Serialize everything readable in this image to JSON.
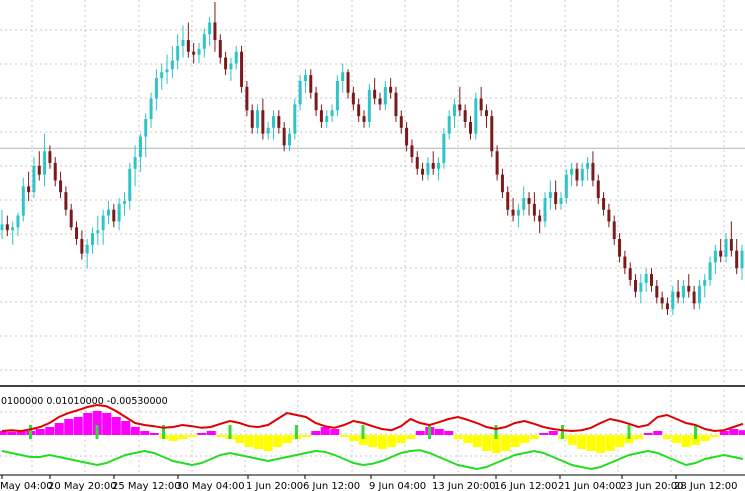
{
  "chart_data": {
    "type": "candlestick",
    "colors": {
      "background": "#ffffff",
      "grid": "#c8c8c8",
      "bull": "#2ec4c9",
      "bear": "#7a1a1a",
      "indicator_upper_line": "#e00000",
      "indicator_lower_line": "#22dd22",
      "hist_magenta": "#ff00ff",
      "hist_yellow": "#ffff00",
      "hist_green": "#33dd33",
      "separator": "#000000",
      "level_line": "#b4b4b4"
    },
    "grid": true,
    "price_panel": {
      "level_line": 0.73,
      "candles": [
        [
          0.45,
          0.52,
          0.42,
          0.47
        ],
        [
          0.47,
          0.5,
          0.43,
          0.45
        ],
        [
          0.45,
          0.48,
          0.4,
          0.46
        ],
        [
          0.46,
          0.51,
          0.43,
          0.5
        ],
        [
          0.5,
          0.63,
          0.48,
          0.6
        ],
        [
          0.6,
          0.65,
          0.55,
          0.58
        ],
        [
          0.58,
          0.7,
          0.56,
          0.67
        ],
        [
          0.67,
          0.72,
          0.62,
          0.64
        ],
        [
          0.64,
          0.78,
          0.6,
          0.72
        ],
        [
          0.72,
          0.74,
          0.66,
          0.68
        ],
        [
          0.68,
          0.7,
          0.6,
          0.62
        ],
        [
          0.62,
          0.65,
          0.56,
          0.58
        ],
        [
          0.58,
          0.6,
          0.5,
          0.52
        ],
        [
          0.52,
          0.54,
          0.45,
          0.46
        ],
        [
          0.46,
          0.48,
          0.4,
          0.42
        ],
        [
          0.42,
          0.45,
          0.35,
          0.37
        ],
        [
          0.37,
          0.42,
          0.32,
          0.4
        ],
        [
          0.4,
          0.46,
          0.37,
          0.44
        ],
        [
          0.44,
          0.5,
          0.4,
          0.45
        ],
        [
          0.45,
          0.52,
          0.4,
          0.5
        ],
        [
          0.5,
          0.55,
          0.47,
          0.52
        ],
        [
          0.52,
          0.54,
          0.46,
          0.48
        ],
        [
          0.48,
          0.56,
          0.45,
          0.54
        ],
        [
          0.54,
          0.58,
          0.5,
          0.55
        ],
        [
          0.55,
          0.68,
          0.52,
          0.66
        ],
        [
          0.66,
          0.74,
          0.6,
          0.7
        ],
        [
          0.7,
          0.78,
          0.65,
          0.77
        ],
        [
          0.77,
          0.85,
          0.7,
          0.83
        ],
        [
          0.83,
          0.92,
          0.8,
          0.9
        ],
        [
          0.9,
          1.0,
          0.86,
          0.97
        ],
        [
          0.97,
          1.02,
          0.93,
          0.99
        ],
        [
          0.99,
          1.05,
          0.95,
          1.0
        ],
        [
          1.0,
          1.08,
          0.97,
          1.03
        ],
        [
          1.03,
          1.12,
          1.0,
          1.08
        ],
        [
          1.08,
          1.15,
          1.04,
          1.1
        ],
        [
          1.1,
          1.16,
          1.04,
          1.06
        ],
        [
          1.06,
          1.09,
          1.02,
          1.05
        ],
        [
          1.05,
          1.09,
          1.02,
          1.07
        ],
        [
          1.07,
          1.14,
          1.04,
          1.12
        ],
        [
          1.12,
          1.18,
          1.08,
          1.16
        ],
        [
          1.16,
          1.23,
          1.06,
          1.1
        ],
        [
          1.1,
          1.12,
          1.02,
          1.04
        ],
        [
          1.04,
          1.06,
          0.98,
          1.0
        ],
        [
          1.0,
          1.04,
          0.96,
          1.02
        ],
        [
          1.02,
          1.08,
          1.0,
          1.06
        ],
        [
          1.06,
          1.08,
          0.92,
          0.94
        ],
        [
          0.94,
          0.96,
          0.84,
          0.86
        ],
        [
          0.86,
          0.88,
          0.78,
          0.8
        ],
        [
          0.8,
          0.88,
          0.78,
          0.86
        ],
        [
          0.86,
          0.9,
          0.76,
          0.78
        ],
        [
          0.78,
          0.82,
          0.76,
          0.8
        ],
        [
          0.8,
          0.86,
          0.76,
          0.84
        ],
        [
          0.84,
          0.86,
          0.78,
          0.8
        ],
        [
          0.8,
          0.82,
          0.72,
          0.74
        ],
        [
          0.74,
          0.8,
          0.72,
          0.78
        ],
        [
          0.78,
          0.9,
          0.76,
          0.88
        ],
        [
          0.88,
          0.98,
          0.86,
          0.96
        ],
        [
          0.96,
          1.0,
          0.92,
          0.98
        ],
        [
          0.98,
          1.0,
          0.9,
          0.92
        ],
        [
          0.92,
          0.94,
          0.84,
          0.86
        ],
        [
          0.86,
          0.88,
          0.8,
          0.82
        ],
        [
          0.82,
          0.86,
          0.8,
          0.84
        ],
        [
          0.84,
          0.88,
          0.82,
          0.86
        ],
        [
          0.86,
          0.98,
          0.84,
          0.96
        ],
        [
          0.96,
          1.02,
          0.92,
          0.99
        ],
        [
          0.99,
          1.0,
          0.9,
          0.92
        ],
        [
          0.92,
          0.94,
          0.86,
          0.88
        ],
        [
          0.88,
          0.9,
          0.82,
          0.84
        ],
        [
          0.84,
          0.86,
          0.8,
          0.82
        ],
        [
          0.82,
          0.95,
          0.8,
          0.93
        ],
        [
          0.93,
          0.97,
          0.88,
          0.9
        ],
        [
          0.9,
          0.92,
          0.86,
          0.88
        ],
        [
          0.88,
          0.96,
          0.86,
          0.94
        ],
        [
          0.94,
          0.97,
          0.9,
          0.92
        ],
        [
          0.92,
          0.94,
          0.82,
          0.84
        ],
        [
          0.84,
          0.86,
          0.78,
          0.8
        ],
        [
          0.8,
          0.82,
          0.72,
          0.74
        ],
        [
          0.74,
          0.76,
          0.68,
          0.7
        ],
        [
          0.7,
          0.72,
          0.64,
          0.66
        ],
        [
          0.66,
          0.68,
          0.62,
          0.64
        ],
        [
          0.64,
          0.7,
          0.62,
          0.68
        ],
        [
          0.68,
          0.72,
          0.64,
          0.66
        ],
        [
          0.66,
          0.7,
          0.62,
          0.68
        ],
        [
          0.68,
          0.8,
          0.66,
          0.78
        ],
        [
          0.78,
          0.86,
          0.76,
          0.84
        ],
        [
          0.84,
          0.9,
          0.8,
          0.88
        ],
        [
          0.88,
          0.94,
          0.84,
          0.86
        ],
        [
          0.86,
          0.88,
          0.8,
          0.82
        ],
        [
          0.82,
          0.84,
          0.76,
          0.78
        ],
        [
          0.78,
          0.92,
          0.76,
          0.9
        ],
        [
          0.9,
          0.94,
          0.84,
          0.86
        ],
        [
          0.86,
          0.88,
          0.8,
          0.84
        ],
        [
          0.84,
          0.86,
          0.7,
          0.72
        ],
        [
          0.72,
          0.74,
          0.62,
          0.64
        ],
        [
          0.64,
          0.66,
          0.56,
          0.58
        ],
        [
          0.58,
          0.6,
          0.5,
          0.52
        ],
        [
          0.52,
          0.56,
          0.48,
          0.5
        ],
        [
          0.5,
          0.54,
          0.46,
          0.52
        ],
        [
          0.52,
          0.6,
          0.5,
          0.56
        ],
        [
          0.56,
          0.58,
          0.5,
          0.54
        ],
        [
          0.54,
          0.58,
          0.48,
          0.5
        ],
        [
          0.5,
          0.52,
          0.44,
          0.48
        ],
        [
          0.48,
          0.58,
          0.46,
          0.56
        ],
        [
          0.56,
          0.62,
          0.52,
          0.58
        ],
        [
          0.58,
          0.62,
          0.52,
          0.54
        ],
        [
          0.54,
          0.58,
          0.52,
          0.56
        ],
        [
          0.56,
          0.66,
          0.54,
          0.64
        ],
        [
          0.64,
          0.68,
          0.6,
          0.66
        ],
        [
          0.66,
          0.68,
          0.6,
          0.62
        ],
        [
          0.62,
          0.68,
          0.6,
          0.66
        ],
        [
          0.66,
          0.7,
          0.62,
          0.68
        ],
        [
          0.68,
          0.72,
          0.6,
          0.62
        ],
        [
          0.62,
          0.64,
          0.54,
          0.56
        ],
        [
          0.56,
          0.58,
          0.5,
          0.52
        ],
        [
          0.52,
          0.54,
          0.46,
          0.48
        ],
        [
          0.48,
          0.5,
          0.4,
          0.42
        ],
        [
          0.42,
          0.44,
          0.34,
          0.36
        ],
        [
          0.36,
          0.38,
          0.3,
          0.32
        ],
        [
          0.32,
          0.34,
          0.26,
          0.28
        ],
        [
          0.28,
          0.3,
          0.22,
          0.24
        ],
        [
          0.24,
          0.3,
          0.2,
          0.27
        ],
        [
          0.27,
          0.32,
          0.24,
          0.3
        ],
        [
          0.3,
          0.32,
          0.24,
          0.26
        ],
        [
          0.26,
          0.28,
          0.2,
          0.22
        ],
        [
          0.22,
          0.24,
          0.18,
          0.2
        ],
        [
          0.2,
          0.22,
          0.16,
          0.18
        ],
        [
          0.18,
          0.26,
          0.16,
          0.24
        ],
        [
          0.24,
          0.28,
          0.2,
          0.22
        ],
        [
          0.22,
          0.28,
          0.2,
          0.26
        ],
        [
          0.26,
          0.3,
          0.22,
          0.24
        ],
        [
          0.24,
          0.26,
          0.18,
          0.2
        ],
        [
          0.2,
          0.28,
          0.18,
          0.26
        ],
        [
          0.26,
          0.3,
          0.22,
          0.28
        ],
        [
          0.28,
          0.36,
          0.26,
          0.34
        ],
        [
          0.34,
          0.4,
          0.3,
          0.38
        ],
        [
          0.38,
          0.42,
          0.34,
          0.36
        ],
        [
          0.36,
          0.44,
          0.34,
          0.42
        ],
        [
          0.42,
          0.48,
          0.36,
          0.38
        ],
        [
          0.38,
          0.42,
          0.3,
          0.32
        ],
        [
          0.32,
          0.4,
          0.28,
          0.38
        ]
      ]
    },
    "indicator_panel": {
      "header_text": "0100000 0.01010000 -0.00530000",
      "upper_line": [
        0.1,
        0.12,
        0.1,
        0.14,
        0.2,
        0.3,
        0.45,
        0.55,
        0.62,
        0.7,
        0.75,
        0.72,
        0.6,
        0.45,
        0.3,
        0.25,
        0.22,
        0.18,
        0.2,
        0.25,
        0.22,
        0.18,
        0.2,
        0.28,
        0.35,
        0.3,
        0.22,
        0.2,
        0.25,
        0.4,
        0.55,
        0.5,
        0.45,
        0.3,
        0.22,
        0.18,
        0.25,
        0.35,
        0.3,
        0.22,
        0.15,
        0.12,
        0.22,
        0.4,
        0.3,
        0.25,
        0.32,
        0.4,
        0.45,
        0.38,
        0.3,
        0.2,
        0.15,
        0.2,
        0.3,
        0.35,
        0.28,
        0.2,
        0.15,
        0.12,
        0.1,
        0.12,
        0.18,
        0.3,
        0.4,
        0.35,
        0.28,
        0.2,
        0.25,
        0.45,
        0.5,
        0.4,
        0.3,
        0.25,
        0.15,
        0.1,
        0.12,
        0.2,
        0.28
      ],
      "histogram": [
        0.1,
        0.08,
        0.12,
        0.1,
        0.15,
        0.2,
        0.3,
        0.4,
        0.45,
        0.55,
        0.6,
        0.55,
        0.45,
        0.35,
        0.2,
        0.1,
        0.05,
        -0.1,
        -0.15,
        -0.1,
        -0.05,
        0.05,
        0.1,
        -0.05,
        -0.1,
        -0.2,
        -0.3,
        -0.35,
        -0.4,
        -0.3,
        -0.2,
        -0.1,
        -0.05,
        0.1,
        0.2,
        0.15,
        -0.05,
        -0.15,
        -0.25,
        -0.3,
        -0.35,
        -0.3,
        -0.2,
        -0.1,
        0.1,
        0.2,
        0.15,
        0.1,
        -0.1,
        -0.2,
        -0.3,
        -0.4,
        -0.45,
        -0.4,
        -0.3,
        -0.2,
        -0.1,
        0.05,
        0.1,
        -0.1,
        -0.25,
        -0.35,
        -0.4,
        -0.45,
        -0.4,
        -0.3,
        -0.2,
        -0.1,
        0.05,
        0.1,
        -0.1,
        -0.2,
        -0.3,
        -0.25,
        -0.15,
        -0.05,
        0.1,
        0.15,
        0.12
      ],
      "lower_line": [
        -0.4,
        -0.45,
        -0.5,
        -0.55,
        -0.55,
        -0.5,
        -0.55,
        -0.6,
        -0.65,
        -0.7,
        -0.75,
        -0.7,
        -0.6,
        -0.5,
        -0.45,
        -0.4,
        -0.45,
        -0.55,
        -0.65,
        -0.7,
        -0.75,
        -0.7,
        -0.6,
        -0.5,
        -0.45,
        -0.5,
        -0.55,
        -0.6,
        -0.65,
        -0.6,
        -0.55,
        -0.5,
        -0.45,
        -0.4,
        -0.42,
        -0.5,
        -0.6,
        -0.7,
        -0.75,
        -0.72,
        -0.65,
        -0.55,
        -0.45,
        -0.4,
        -0.38,
        -0.45,
        -0.55,
        -0.65,
        -0.75,
        -0.8,
        -0.85,
        -0.8,
        -0.7,
        -0.6,
        -0.5,
        -0.45,
        -0.4,
        -0.45,
        -0.55,
        -0.65,
        -0.75,
        -0.8,
        -0.85,
        -0.8,
        -0.7,
        -0.6,
        -0.5,
        -0.45,
        -0.4,
        -0.45,
        -0.55,
        -0.65,
        -0.75,
        -0.7,
        -0.6,
        -0.55,
        -0.5,
        -0.55,
        -0.6
      ]
    },
    "x_tick_labels": [
      "May 04:00",
      "20 May 20:00",
      "25 May 12:00",
      "30 May 04:00",
      "1 Jun 20:00",
      "6 Jun 12:00",
      "9 Jun 04:00",
      "13 Jun 20:00",
      "16 Jun 12:00",
      "21 Jun 04:00",
      "23 Jun 20:00",
      "28 Jun 12:00"
    ]
  }
}
